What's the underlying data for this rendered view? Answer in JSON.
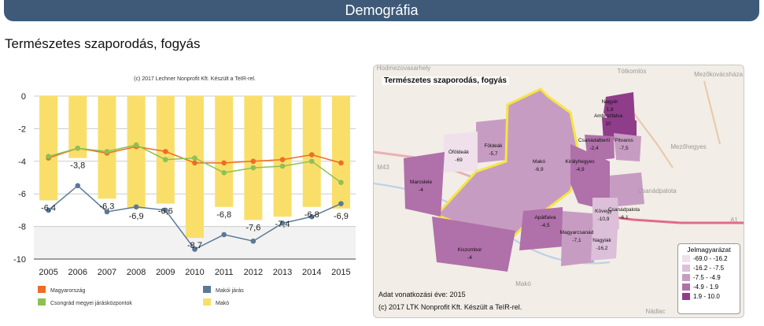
{
  "header": {
    "title": "Demográfia"
  },
  "section": {
    "title": "Természetes szaporodás, fogyás"
  },
  "chart_data": {
    "type": "bar",
    "credit": "(c) 2017 Lechner Nonprofit Kft. Készült a TeIR-rel.",
    "categories": [
      "2005",
      "2006",
      "2007",
      "2008",
      "2009",
      "2010",
      "2011",
      "2012",
      "2013",
      "2014",
      "2015"
    ],
    "ylim": [
      -10,
      0
    ],
    "yticks": [
      0,
      -2,
      -4,
      -6,
      -8,
      -10
    ],
    "series": [
      {
        "name": "Makó",
        "type": "bar",
        "color": "#f9df6a",
        "values": [
          -6.4,
          -3.8,
          -6.3,
          -6.9,
          -6.6,
          -8.7,
          -6.8,
          -7.6,
          -7.4,
          -6.8,
          -6.9
        ],
        "labels": [
          "-6,4",
          "-3,8",
          "-6,3",
          "-6,9",
          "-6,6",
          "-8,7",
          "-6,8",
          "-7,6",
          "-7,4",
          "-6,8",
          "-6,9"
        ]
      },
      {
        "name": "Magyarország",
        "type": "line",
        "color": "#ef6c27",
        "values": [
          -3.8,
          -3.2,
          -3.5,
          -3.1,
          -3.4,
          -4.1,
          -4.1,
          -4.0,
          -3.9,
          -3.6,
          -4.1
        ]
      },
      {
        "name": "Csongrád megyei járásközpontok",
        "type": "line",
        "color": "#8dc154",
        "values": [
          -3.7,
          -3.2,
          -3.4,
          -3.0,
          -3.9,
          -3.8,
          -4.7,
          -4.4,
          -4.3,
          -4.0,
          -5.3
        ]
      },
      {
        "name": "Makói járás",
        "type": "line",
        "color": "#5b7896",
        "values": [
          -7.0,
          -5.5,
          -7.1,
          -6.8,
          -7.0,
          -9.4,
          -8.5,
          -8.9,
          -7.8,
          -7.4,
          -6.6
        ]
      }
    ],
    "legend": [
      "Magyarország",
      "Makói járás",
      "Csongrád megyei járásközpontok",
      "Makó"
    ]
  },
  "map": {
    "title": "Természetes szaporodás, fogyás",
    "year_note": "Adat vonatkozási éve: 2015",
    "credit": "(c) 2017 LTK Nonprofit Kft. Készült a TeIR-rel.",
    "legend_title": "Jelmagyarázat",
    "legend": [
      {
        "label": "-69.0 - -16.2",
        "color": "#efe0ec"
      },
      {
        "label": "-16.2 - -7.5",
        "color": "#dcbfd8"
      },
      {
        "label": "-7.5 - -4.9",
        "color": "#c79cc2"
      },
      {
        "label": "-4.9 - 1.9",
        "color": "#b070aa"
      },
      {
        "label": "1.9 - 10.0",
        "color": "#8f3d8a"
      }
    ],
    "basemap_labels": [
      "Hodmezovasarhely",
      "Tótkomlós",
      "Mezőkovácsháza",
      "Mezőhegyes",
      "Csanádpalota",
      "Makó",
      "Nádlac",
      "M43",
      "A1"
    ],
    "settlements": [
      {
        "name": "Nagyér",
        "value": "1,9"
      },
      {
        "name": "Ambrózfalva",
        "value": "10"
      },
      {
        "name": "Csanádalberti",
        "value": "-2,4"
      },
      {
        "name": "Pitvaros",
        "value": "-7,5"
      },
      {
        "name": "Földeák",
        "value": "-5,7"
      },
      {
        "name": "Óföldeák",
        "value": "-69"
      },
      {
        "name": "Makó",
        "value": "-6,9"
      },
      {
        "name": "Királyhegyes",
        "value": "-4,9"
      },
      {
        "name": "Maroslele",
        "value": "-4"
      },
      {
        "name": "Csanádpalota",
        "value": "-6,1"
      },
      {
        "name": "Kövegy",
        "value": "-10,9"
      },
      {
        "name": "Apátfalva",
        "value": "-4,5"
      },
      {
        "name": "Magyarcsanád",
        "value": "-7,1"
      },
      {
        "name": "Nagylak",
        "value": "-16,2"
      },
      {
        "name": "Kiszombor",
        "value": "-4"
      }
    ]
  }
}
